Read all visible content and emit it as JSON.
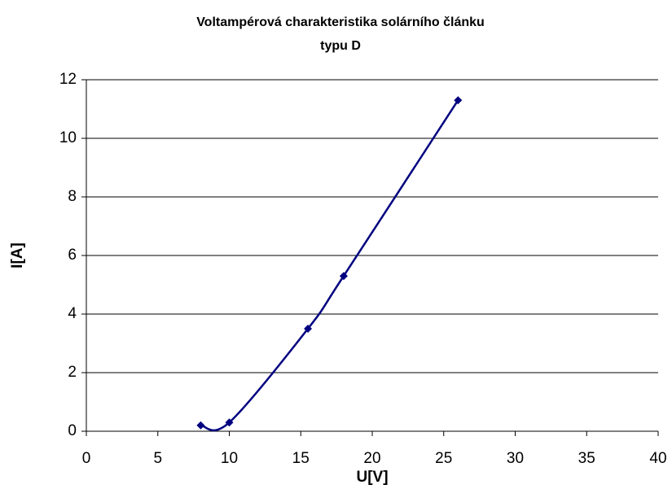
{
  "chart_data": {
    "type": "scatter",
    "title": [
      "Voltampérová charakteristika solárního článku",
      "typu D"
    ],
    "x_label": "U[V]",
    "y_label": "I[A]",
    "x": [
      8,
      10,
      15.5,
      18,
      26
    ],
    "values": [
      0.2,
      0.3,
      3.5,
      5.3,
      11.3
    ],
    "color": "#000080",
    "smooth": true,
    "xlim": [
      0,
      40
    ],
    "xticks": [
      0,
      5,
      10,
      15,
      20,
      25,
      30,
      35,
      40
    ],
    "ylim": [
      0,
      12
    ],
    "yticks": [
      0,
      2,
      4,
      6,
      8,
      10,
      12
    ],
    "grid": true
  }
}
